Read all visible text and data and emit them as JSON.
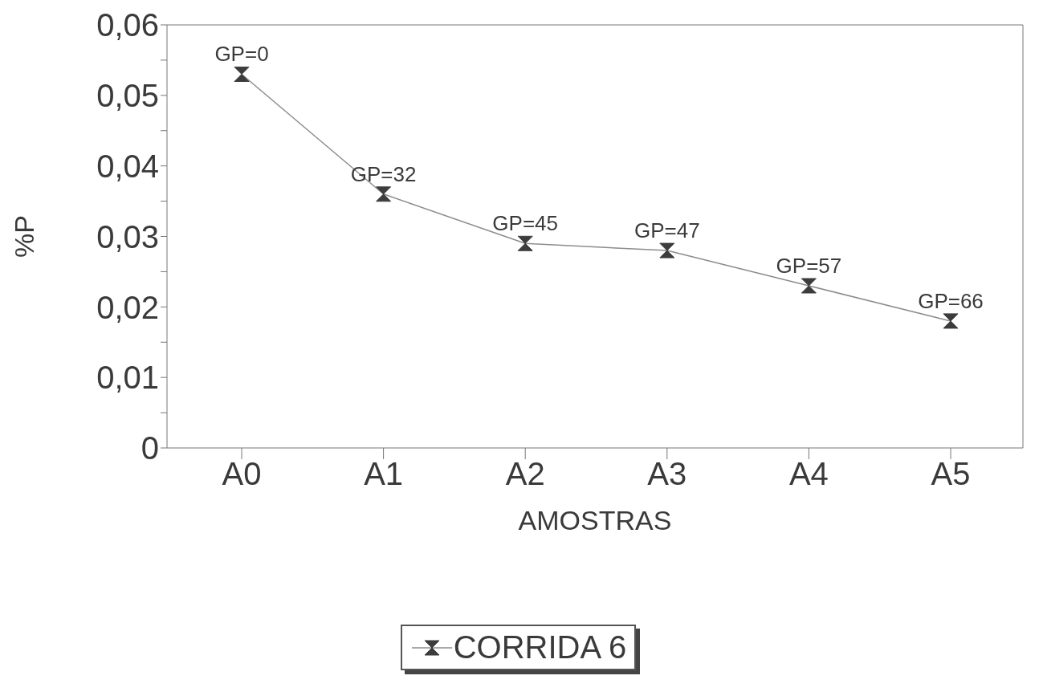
{
  "chart_data": {
    "type": "line",
    "xlabel": "AMOSTRAS",
    "ylabel": "%P",
    "categories": [
      "A0",
      "A1",
      "A2",
      "A3",
      "A4",
      "A5"
    ],
    "series": [
      {
        "name": "CORRIDA 6",
        "color": "#8c8c8c",
        "values": [
          0.053,
          0.036,
          0.029,
          0.028,
          0.023,
          0.018
        ]
      }
    ],
    "ylim": [
      0,
      0.06
    ],
    "yticks": [
      {
        "value": 0,
        "label": "0"
      },
      {
        "value": 0.005,
        "label": null
      },
      {
        "value": 0.01,
        "label": "0,01"
      },
      {
        "value": 0.015,
        "label": null
      },
      {
        "value": 0.02,
        "label": "0,02"
      },
      {
        "value": 0.025,
        "label": null
      },
      {
        "value": 0.03,
        "label": "0,03"
      },
      {
        "value": 0.035,
        "label": null
      },
      {
        "value": 0.04,
        "label": "0,04"
      },
      {
        "value": 0.045,
        "label": null
      },
      {
        "value": 0.05,
        "label": "0,05"
      },
      {
        "value": 0.055,
        "label": null
      },
      {
        "value": 0.06,
        "label": "0,06"
      }
    ],
    "annotations": [
      {
        "text": "GP=0",
        "x": "A0",
        "y": 0.053
      },
      {
        "text": "GP=32",
        "x": "A1",
        "y": 0.036
      },
      {
        "text": "GP=45",
        "x": "A2",
        "y": 0.029
      },
      {
        "text": "GP=47",
        "x": "A3",
        "y": 0.028
      },
      {
        "text": "GP=57",
        "x": "A4",
        "y": 0.023
      },
      {
        "text": "GP=66",
        "x": "A5",
        "y": 0.018
      }
    ],
    "marker": "triangle",
    "line_style": "solid",
    "legend": "bottom"
  }
}
